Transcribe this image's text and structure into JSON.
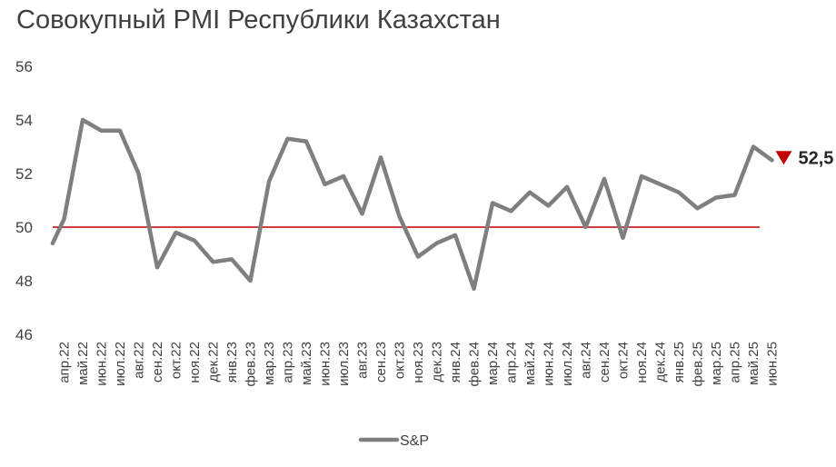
{
  "chart_data": {
    "type": "line",
    "title": "Совокупный PMI Республики Казахстан",
    "xlabel": "",
    "ylabel": "",
    "ylim": [
      46,
      56
    ],
    "yticks": [
      46,
      48,
      50,
      52,
      54,
      56
    ],
    "reference_line": {
      "value": 50,
      "color": "#c00000"
    },
    "categories": [
      "апр.22",
      "май.22",
      "июн.22",
      "июл.22",
      "авг.22",
      "сен.22",
      "окт.22",
      "ноя.22",
      "дек.22",
      "янв.23",
      "фев.23",
      "мар.23",
      "апр.23",
      "май.23",
      "июн.23",
      "июл.23",
      "авг.23",
      "сен.23",
      "окт.23",
      "ноя.23",
      "дек.23",
      "янв.24",
      "фев.24",
      "мар.24",
      "апр.24",
      "май.24",
      "июн.24",
      "июл.24",
      "авг.24",
      "сен.24",
      "окт.24",
      "ноя.24",
      "дек.24",
      "янв.25",
      "фев.25",
      "мар.25",
      "апр.25",
      "май.25",
      "июн.25"
    ],
    "x": [
      0,
      1,
      2,
      3,
      4,
      5,
      6,
      7,
      8,
      9,
      10,
      11,
      12,
      13,
      14,
      15,
      16,
      17,
      18,
      19,
      20,
      21,
      22,
      23,
      24,
      25,
      26,
      27,
      28,
      29,
      30,
      31,
      32,
      33,
      34,
      35,
      36,
      37,
      38
    ],
    "series": [
      {
        "name": "S&P",
        "color": "#7f7f7f",
        "values": [
          50.3,
          54.0,
          53.6,
          53.6,
          52.0,
          48.5,
          49.8,
          49.5,
          48.7,
          48.8,
          48.0,
          51.7,
          53.3,
          53.2,
          51.6,
          51.9,
          50.5,
          52.6,
          50.4,
          48.9,
          49.4,
          49.7,
          47.7,
          50.9,
          50.6,
          51.3,
          50.8,
          51.5,
          50.0,
          51.8,
          49.6,
          51.9,
          51.6,
          51.3,
          50.7,
          51.1,
          51.2,
          53.0,
          52.5
        ]
      }
    ],
    "start_value": 49.4,
    "last_value_label": "52,5",
    "marker_color": "#c00000",
    "legend": {
      "position": "bottom",
      "entries": [
        "S&P"
      ]
    }
  }
}
